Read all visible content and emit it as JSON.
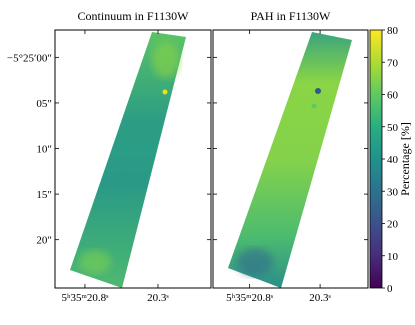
{
  "chart_data": [
    {
      "type": "image",
      "title": "Continuum in F1130W",
      "xlim": [
        21.005,
        19.937
      ],
      "xticks": [
        {
          "value": 20.8,
          "label": "5ʰ35ᵐ20.8ˢ"
        },
        {
          "value": 20.3,
          "label": "20.3ˢ"
        }
      ],
      "ylim": [
        25.3,
        -3.0
      ],
      "yticks": [
        {
          "value": 0,
          "label": "−5°25′00″"
        },
        {
          "value": 5,
          "label": "05″"
        },
        {
          "value": 10,
          "label": "10″"
        },
        {
          "value": 15,
          "label": "15″"
        },
        {
          "value": 20,
          "label": "20″"
        }
      ]
    },
    {
      "type": "image",
      "title": "PAH in F1130W",
      "xlim": [
        21.06,
        19.96
      ],
      "xticks": [
        {
          "value": 20.8,
          "label": "5ʰ35ᵐ20.8ˢ"
        },
        {
          "value": 20.3,
          "label": "20.3ˢ"
        }
      ],
      "colorbar": {
        "label": "Percentage [%]",
        "colormap": "viridis",
        "lim": [
          0,
          80
        ],
        "ticks": [
          0,
          10,
          20,
          30,
          40,
          50,
          60,
          70,
          80
        ]
      }
    }
  ]
}
